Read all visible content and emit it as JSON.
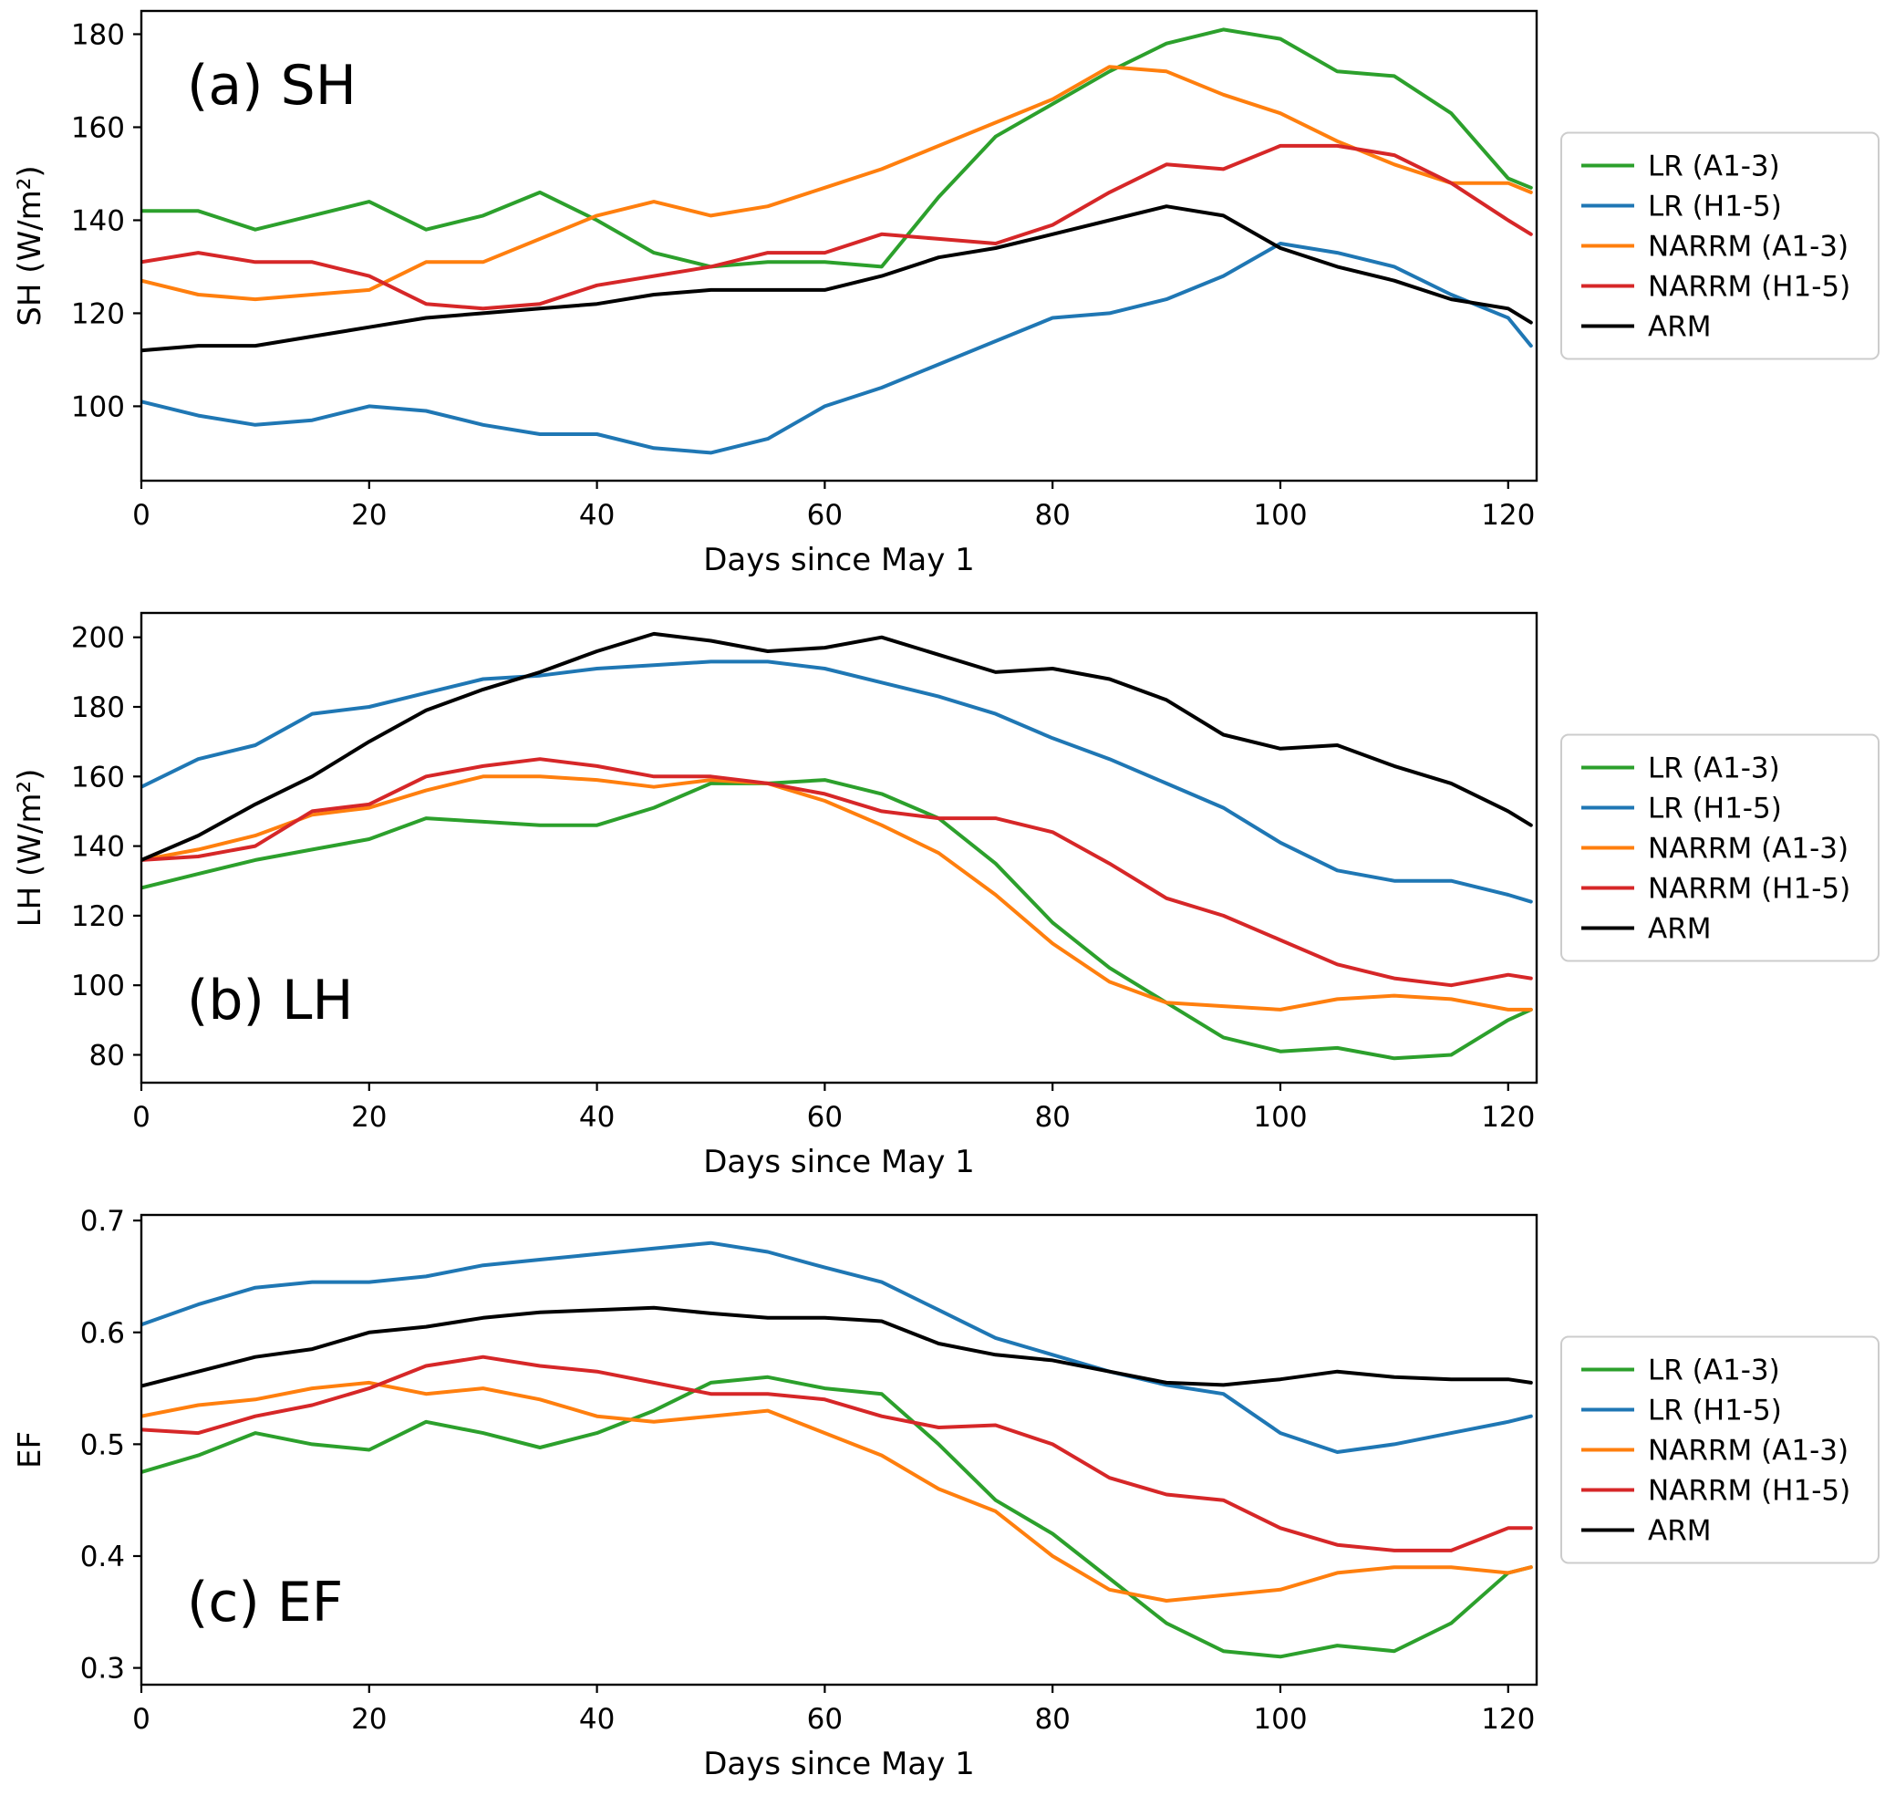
{
  "figure": {
    "xlabel": "Days since May 1",
    "accent_colors": {
      "green": "#2ca02c",
      "blue": "#1f77b4",
      "orange": "#ff7f0e",
      "red": "#d62728",
      "black": "#000000"
    }
  },
  "chart_data": [
    {
      "type": "line",
      "panel_label": "(a) SH",
      "panel_label_pos": "top-left",
      "ylabel": "SH (W/m²)",
      "xlabel": "Days since May 1",
      "xlim": [
        0,
        122.5
      ],
      "ylim": [
        84,
        185
      ],
      "x_ticks": [
        0,
        20,
        40,
        60,
        80,
        100,
        120
      ],
      "y_ticks": [
        100,
        120,
        140,
        160,
        180
      ],
      "grid": false,
      "legend_position": "right-outside",
      "x": [
        0,
        5,
        10,
        15,
        20,
        25,
        30,
        35,
        40,
        45,
        50,
        55,
        60,
        65,
        70,
        75,
        80,
        85,
        90,
        95,
        100,
        105,
        110,
        115,
        120,
        122
      ],
      "series": [
        {
          "name": "LR (A1-3)",
          "color": "#2ca02c",
          "values": [
            142,
            142,
            138,
            141,
            144,
            138,
            141,
            146,
            140,
            133,
            130,
            131,
            131,
            130,
            145,
            158,
            165,
            172,
            178,
            181,
            179,
            172,
            171,
            163,
            149,
            147
          ]
        },
        {
          "name": "LR (H1-5)",
          "color": "#1f77b4",
          "values": [
            101,
            98,
            96,
            97,
            100,
            99,
            96,
            94,
            94,
            91,
            90,
            93,
            100,
            104,
            109,
            114,
            119,
            120,
            123,
            128,
            135,
            133,
            130,
            124,
            119,
            113
          ]
        },
        {
          "name": "NARRM (A1-3)",
          "color": "#ff7f0e",
          "values": [
            127,
            124,
            123,
            124,
            125,
            131,
            131,
            136,
            141,
            144,
            141,
            143,
            147,
            151,
            156,
            161,
            166,
            173,
            172,
            167,
            163,
            157,
            152,
            148,
            148,
            146
          ]
        },
        {
          "name": "NARRM (H1-5)",
          "color": "#d62728",
          "values": [
            131,
            133,
            131,
            131,
            128,
            122,
            121,
            122,
            126,
            128,
            130,
            133,
            133,
            137,
            136,
            135,
            139,
            146,
            152,
            151,
            156,
            156,
            154,
            148,
            140,
            137
          ]
        },
        {
          "name": "ARM",
          "color": "#000000",
          "values": [
            112,
            113,
            113,
            115,
            117,
            119,
            120,
            121,
            122,
            124,
            125,
            125,
            125,
            128,
            132,
            134,
            137,
            140,
            143,
            141,
            134,
            130,
            127,
            123,
            121,
            118
          ]
        }
      ],
      "legend": [
        {
          "label": "LR (A1-3)",
          "color": "#2ca02c"
        },
        {
          "label": "LR (H1-5)",
          "color": "#1f77b4"
        },
        {
          "label": "NARRM (A1-3)",
          "color": "#ff7f0e"
        },
        {
          "label": "NARRM (H1-5)",
          "color": "#d62728"
        },
        {
          "label": "ARM",
          "color": "#000000"
        }
      ]
    },
    {
      "type": "line",
      "panel_label": "(b) LH",
      "panel_label_pos": "bottom-left",
      "ylabel": "LH (W/m²)",
      "xlabel": "Days since May 1",
      "xlim": [
        0,
        122.5
      ],
      "ylim": [
        72,
        207
      ],
      "x_ticks": [
        0,
        20,
        40,
        60,
        80,
        100,
        120
      ],
      "y_ticks": [
        80,
        100,
        120,
        140,
        160,
        180,
        200
      ],
      "grid": false,
      "legend_position": "right-outside",
      "x": [
        0,
        5,
        10,
        15,
        20,
        25,
        30,
        35,
        40,
        45,
        50,
        55,
        60,
        65,
        70,
        75,
        80,
        85,
        90,
        95,
        100,
        105,
        110,
        115,
        120,
        122
      ],
      "series": [
        {
          "name": "LR (A1-3)",
          "color": "#2ca02c",
          "values": [
            128,
            132,
            136,
            139,
            142,
            148,
            147,
            146,
            146,
            151,
            158,
            158,
            159,
            155,
            148,
            135,
            118,
            105,
            95,
            85,
            81,
            82,
            79,
            80,
            90,
            93
          ]
        },
        {
          "name": "LR (H1-5)",
          "color": "#1f77b4",
          "values": [
            157,
            165,
            169,
            178,
            180,
            184,
            188,
            189,
            191,
            192,
            193,
            193,
            191,
            187,
            183,
            178,
            171,
            165,
            158,
            151,
            141,
            133,
            130,
            130,
            126,
            124
          ]
        },
        {
          "name": "NARRM (A1-3)",
          "color": "#ff7f0e",
          "values": [
            136,
            139,
            143,
            149,
            151,
            156,
            160,
            160,
            159,
            157,
            159,
            158,
            153,
            146,
            138,
            126,
            112,
            101,
            95,
            94,
            93,
            96,
            97,
            96,
            93,
            93
          ]
        },
        {
          "name": "NARRM (H1-5)",
          "color": "#d62728",
          "values": [
            136,
            137,
            140,
            150,
            152,
            160,
            163,
            165,
            163,
            160,
            160,
            158,
            155,
            150,
            148,
            148,
            144,
            135,
            125,
            120,
            113,
            106,
            102,
            100,
            103,
            102
          ]
        },
        {
          "name": "ARM",
          "color": "#000000",
          "values": [
            136,
            143,
            152,
            160,
            170,
            179,
            185,
            190,
            196,
            201,
            199,
            196,
            197,
            200,
            195,
            190,
            191,
            188,
            182,
            172,
            168,
            169,
            163,
            158,
            150,
            146
          ]
        }
      ],
      "legend": [
        {
          "label": "LR (A1-3)",
          "color": "#2ca02c"
        },
        {
          "label": "LR (H1-5)",
          "color": "#1f77b4"
        },
        {
          "label": "NARRM (A1-3)",
          "color": "#ff7f0e"
        },
        {
          "label": "NARRM (H1-5)",
          "color": "#d62728"
        },
        {
          "label": "ARM",
          "color": "#000000"
        }
      ]
    },
    {
      "type": "line",
      "panel_label": "(c) EF",
      "panel_label_pos": "bottom-left",
      "ylabel": "EF",
      "xlabel": "Days since May 1",
      "xlim": [
        0,
        122.5
      ],
      "ylim": [
        0.285,
        0.705
      ],
      "x_ticks": [
        0,
        20,
        40,
        60,
        80,
        100,
        120
      ],
      "y_ticks": [
        0.3,
        0.4,
        0.5,
        0.6,
        0.7
      ],
      "grid": false,
      "legend_position": "right-outside",
      "x": [
        0,
        5,
        10,
        15,
        20,
        25,
        30,
        35,
        40,
        45,
        50,
        55,
        60,
        65,
        70,
        75,
        80,
        85,
        90,
        95,
        100,
        105,
        110,
        115,
        120,
        122
      ],
      "series": [
        {
          "name": "LR (A1-3)",
          "color": "#2ca02c",
          "values": [
            0.475,
            0.49,
            0.51,
            0.5,
            0.495,
            0.52,
            0.51,
            0.497,
            0.51,
            0.53,
            0.555,
            0.56,
            0.55,
            0.545,
            0.5,
            0.45,
            0.42,
            0.38,
            0.34,
            0.315,
            0.31,
            0.32,
            0.315,
            0.34,
            0.385,
            0.39
          ]
        },
        {
          "name": "LR (H1-5)",
          "color": "#1f77b4",
          "values": [
            0.607,
            0.625,
            0.64,
            0.645,
            0.645,
            0.65,
            0.66,
            0.665,
            0.67,
            0.675,
            0.68,
            0.672,
            0.658,
            0.645,
            0.62,
            0.595,
            0.58,
            0.565,
            0.553,
            0.545,
            0.51,
            0.493,
            0.5,
            0.51,
            0.52,
            0.525
          ]
        },
        {
          "name": "NARRM (A1-3)",
          "color": "#ff7f0e",
          "values": [
            0.525,
            0.535,
            0.54,
            0.55,
            0.555,
            0.545,
            0.55,
            0.54,
            0.525,
            0.52,
            0.525,
            0.53,
            0.51,
            0.49,
            0.46,
            0.44,
            0.4,
            0.37,
            0.36,
            0.365,
            0.37,
            0.385,
            0.39,
            0.39,
            0.385,
            0.39
          ]
        },
        {
          "name": "NARRM (H1-5)",
          "color": "#d62728",
          "values": [
            0.513,
            0.51,
            0.525,
            0.535,
            0.55,
            0.57,
            0.578,
            0.57,
            0.565,
            0.555,
            0.545,
            0.545,
            0.54,
            0.525,
            0.515,
            0.517,
            0.5,
            0.47,
            0.455,
            0.45,
            0.425,
            0.41,
            0.405,
            0.405,
            0.425,
            0.425
          ]
        },
        {
          "name": "ARM",
          "color": "#000000",
          "values": [
            0.552,
            0.565,
            0.578,
            0.585,
            0.6,
            0.605,
            0.613,
            0.618,
            0.62,
            0.622,
            0.617,
            0.613,
            0.613,
            0.61,
            0.59,
            0.58,
            0.575,
            0.565,
            0.555,
            0.553,
            0.558,
            0.565,
            0.56,
            0.558,
            0.558,
            0.555
          ]
        }
      ],
      "legend": [
        {
          "label": "LR (A1-3)",
          "color": "#2ca02c"
        },
        {
          "label": "LR (H1-5)",
          "color": "#1f77b4"
        },
        {
          "label": "NARRM (A1-3)",
          "color": "#ff7f0e"
        },
        {
          "label": "NARRM (H1-5)",
          "color": "#d62728"
        },
        {
          "label": "ARM",
          "color": "#000000"
        }
      ]
    }
  ]
}
